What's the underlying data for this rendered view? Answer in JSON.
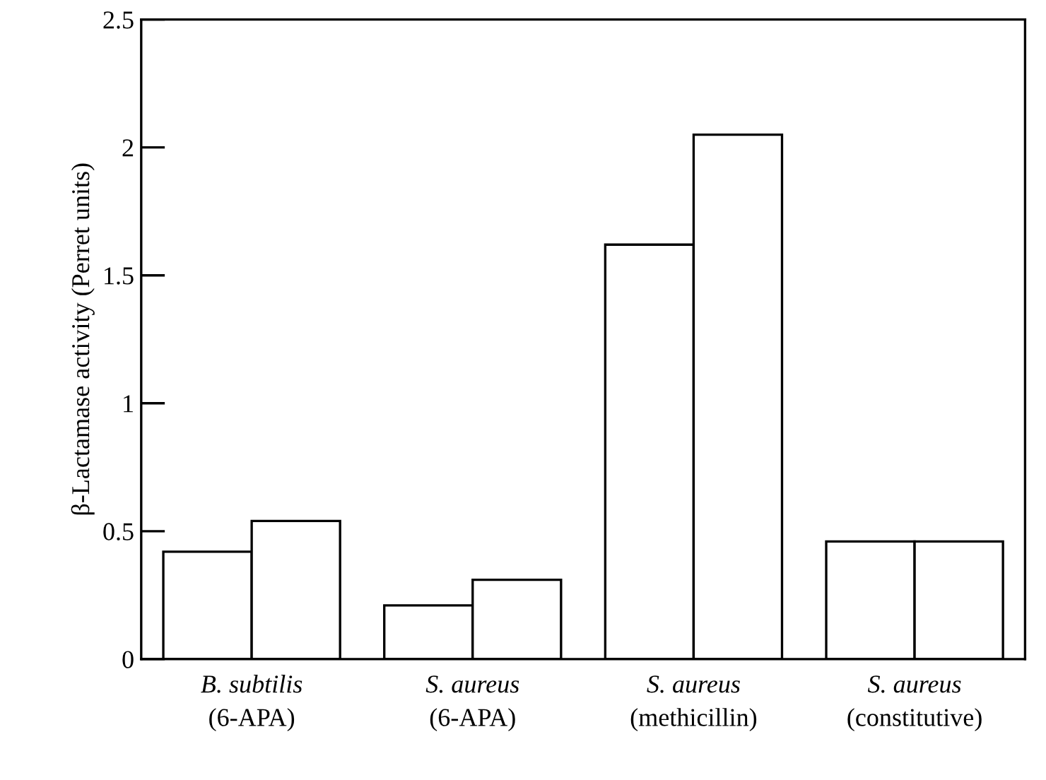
{
  "chart_data": {
    "type": "bar",
    "ylabel": "β-Lactamase activity (Perret units)",
    "categories": [
      "B. subtilis\n(6-APA)",
      "S. aureus\n(6-APA)",
      "S. aureus\n(methicillin)",
      "S. aureus\n(constitutive)"
    ],
    "series": [
      {
        "color": "#ffffff",
        "values": [
          0.42,
          0.21,
          1.62,
          0.46
        ]
      },
      {
        "color": "#ffffff",
        "values": [
          0.54,
          0.31,
          2.05,
          0.46
        ]
      }
    ],
    "ylim": [
      0,
      2.5
    ],
    "yticks": [
      0,
      0.5,
      1,
      1.5,
      2,
      2.5
    ],
    "grid": false,
    "legend": false
  }
}
